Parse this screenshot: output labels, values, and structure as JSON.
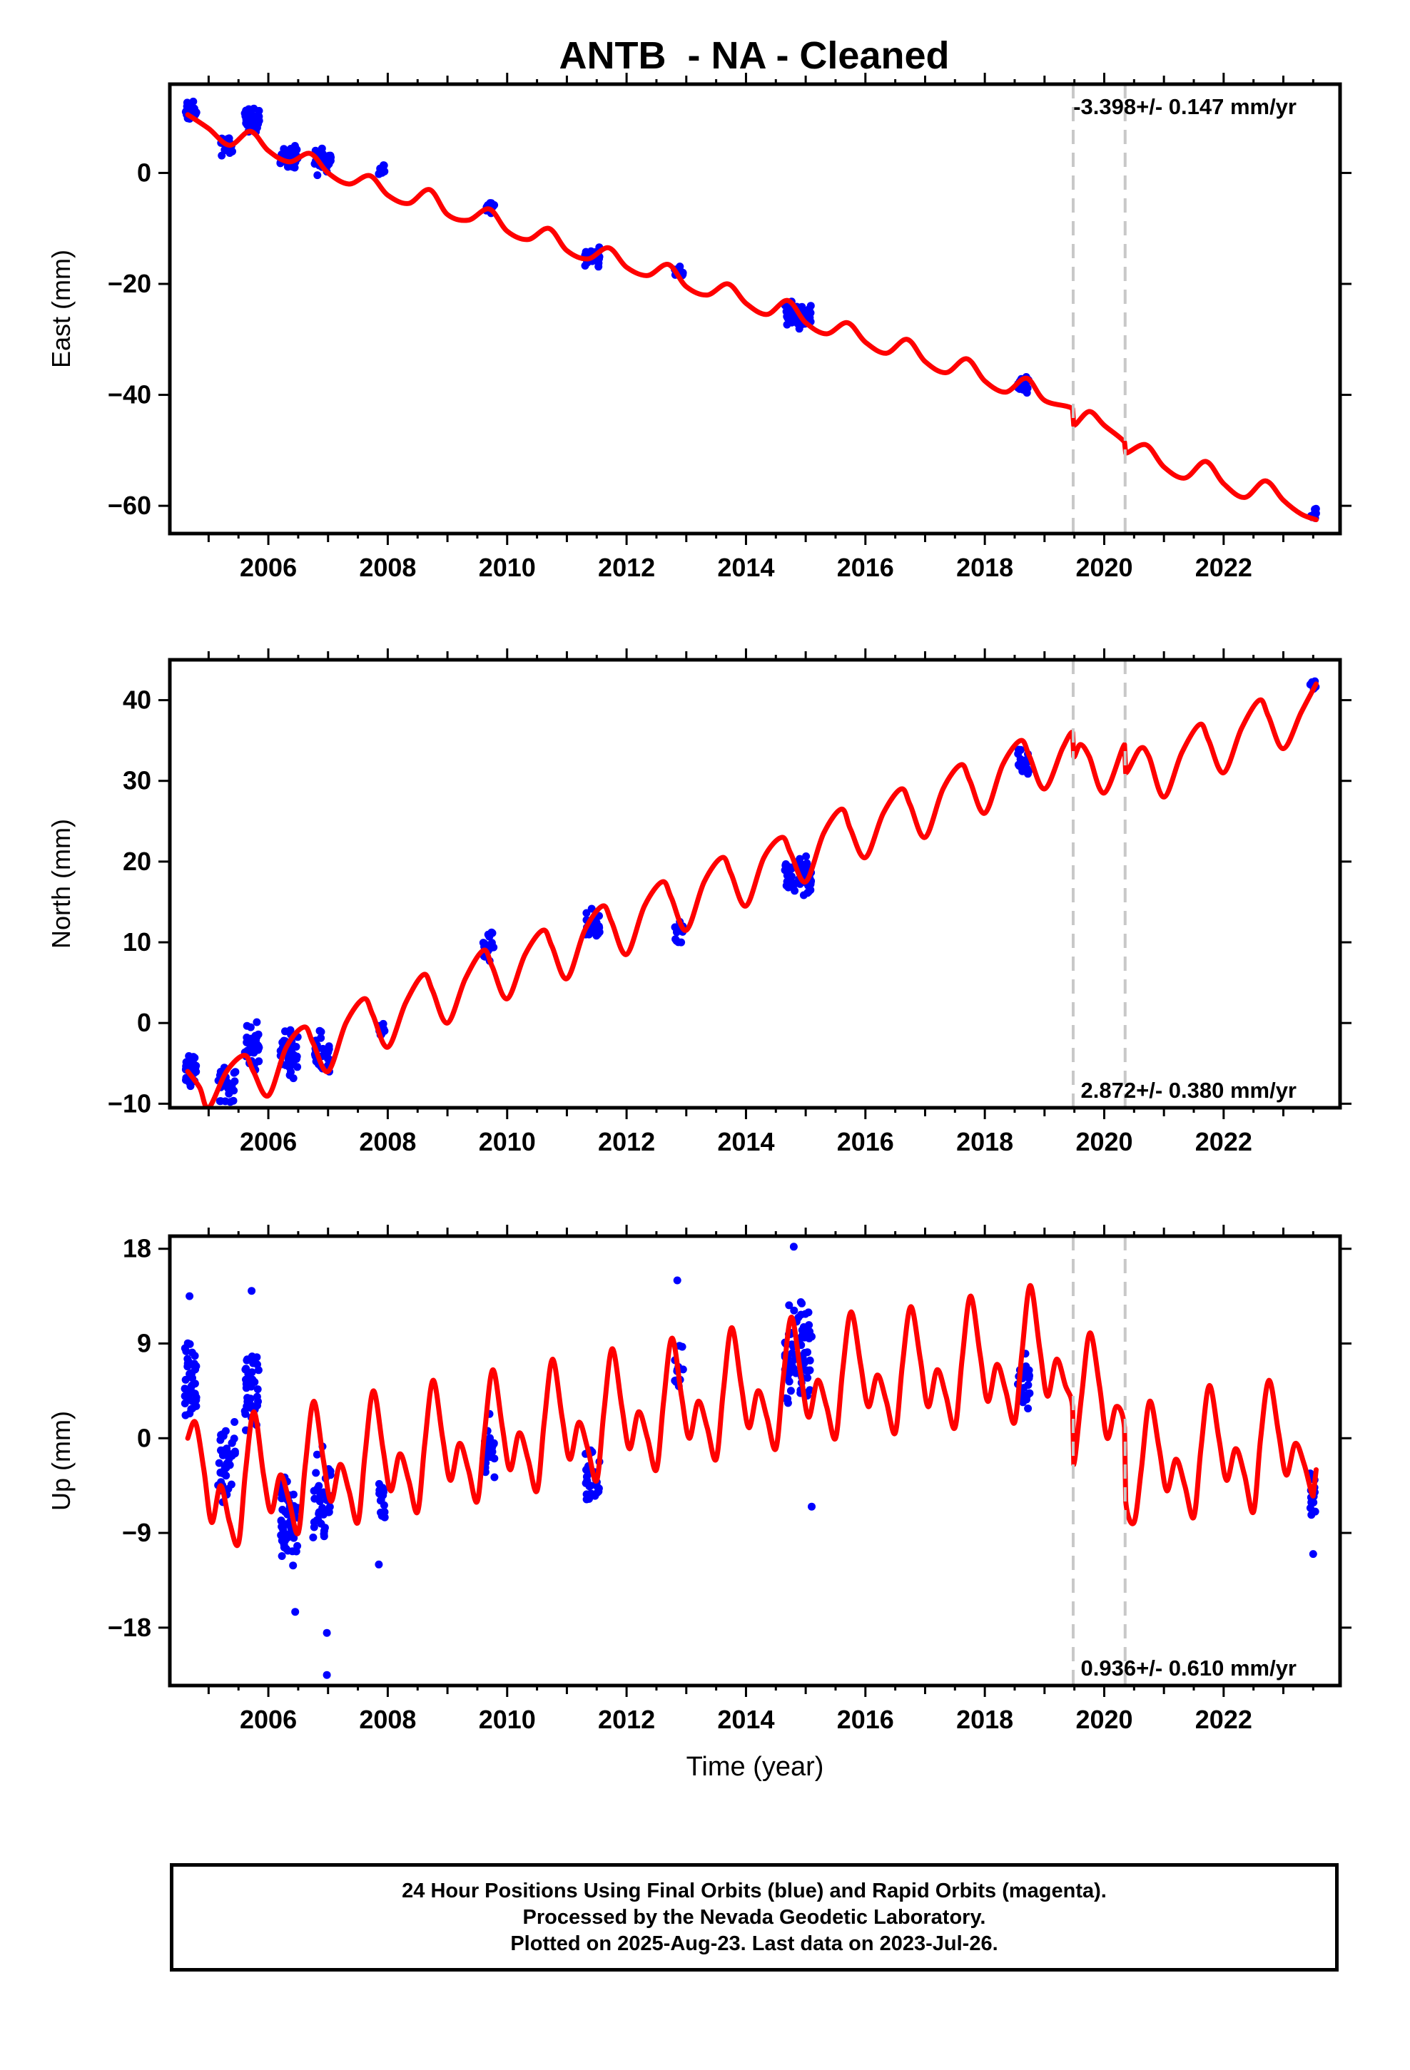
{
  "title": "ANTB  - NA - Cleaned",
  "colors": {
    "final_orbits": "#0000ff",
    "model": "#ff0000",
    "steps": "#c8c8c8",
    "frame": "#000000"
  },
  "chart_data": [
    {
      "type": "scatter",
      "component": "east",
      "ylabel": "East (mm)",
      "xlabel": "",
      "xlim": [
        2004.35,
        2023.95
      ],
      "ylim": [
        -65,
        16
      ],
      "yticks": [
        -60,
        -40,
        -20,
        0
      ],
      "xticks": [
        2006,
        2008,
        2010,
        2012,
        2014,
        2016,
        2018,
        2020,
        2022
      ],
      "rate_label": "-3.398+/- 0.147 mm/yr",
      "rate_position": "top-right",
      "steps": [
        2019.48,
        2020.35
      ],
      "model": {
        "name": "model",
        "x": [
          2004.65,
          2005.0,
          2005.35,
          2005.7,
          2006.0,
          2006.35,
          2006.7,
          2007.0,
          2007.35,
          2007.7,
          2008.0,
          2008.35,
          2008.7,
          2009.0,
          2009.35,
          2009.7,
          2010.0,
          2010.35,
          2010.7,
          2011.0,
          2011.35,
          2011.7,
          2012.0,
          2012.35,
          2012.7,
          2013.0,
          2013.35,
          2013.7,
          2014.0,
          2014.35,
          2014.7,
          2015.0,
          2015.35,
          2015.7,
          2016.0,
          2016.35,
          2016.7,
          2017.0,
          2017.35,
          2017.7,
          2018.0,
          2018.35,
          2018.7,
          2019.0,
          2019.47,
          2019.49,
          2019.75,
          2020.0,
          2020.34,
          2020.36,
          2020.7,
          2021.0,
          2021.35,
          2021.7,
          2022.0,
          2022.35,
          2022.7,
          2023.0,
          2023.3,
          2023.55
        ],
        "y": [
          10.5,
          8.0,
          5.0,
          7.5,
          4.0,
          2.0,
          3.5,
          0.0,
          -2.0,
          -0.5,
          -4.0,
          -5.5,
          -3.0,
          -7.5,
          -8.5,
          -6.5,
          -10.5,
          -12.0,
          -10.0,
          -14.0,
          -15.5,
          -13.5,
          -17.0,
          -18.5,
          -16.5,
          -20.5,
          -22.0,
          -20.0,
          -23.5,
          -25.5,
          -23.0,
          -27.0,
          -29.0,
          -27.0,
          -30.5,
          -32.5,
          -30.0,
          -34.0,
          -36.0,
          -33.5,
          -37.5,
          -39.5,
          -37.0,
          -41.0,
          -42.5,
          -45.5,
          -43.0,
          -45.5,
          -48.5,
          -50.5,
          -49.0,
          -53.0,
          -55.0,
          -52.0,
          -56.0,
          -58.5,
          -55.5,
          -59.0,
          -61.5,
          -62.5
        ]
      },
      "clusters": [
        {
          "x0": 2004.6,
          "x1": 2004.8,
          "y": 11.0,
          "spread": 2.5,
          "n": 30
        },
        {
          "x0": 2005.2,
          "x1": 2005.4,
          "y": 5.0,
          "spread": 2.5,
          "n": 30
        },
        {
          "x0": 2005.6,
          "x1": 2005.85,
          "y": 9.5,
          "spread": 3.0,
          "n": 34
        },
        {
          "x0": 2006.2,
          "x1": 2006.5,
          "y": 3.0,
          "spread": 3.0,
          "n": 40
        },
        {
          "x0": 2006.75,
          "x1": 2007.05,
          "y": 2.0,
          "spread": 3.0,
          "n": 36
        },
        {
          "x0": 2007.85,
          "x1": 2007.95,
          "y": 0.5,
          "spread": 2.0,
          "n": 12
        },
        {
          "x0": 2009.65,
          "x1": 2009.8,
          "y": -6.0,
          "spread": 1.5,
          "n": 16
        },
        {
          "x0": 2011.3,
          "x1": 2011.55,
          "y": -15.0,
          "spread": 2.5,
          "n": 30
        },
        {
          "x0": 2012.8,
          "x1": 2012.95,
          "y": -18.0,
          "spread": 2.0,
          "n": 12
        },
        {
          "x0": 2014.65,
          "x1": 2015.1,
          "y": -25.5,
          "spread": 3.0,
          "n": 60
        },
        {
          "x0": 2018.55,
          "x1": 2018.75,
          "y": -38.0,
          "spread": 2.0,
          "n": 20
        },
        {
          "x0": 2023.45,
          "x1": 2023.55,
          "y": -61.5,
          "spread": 1.5,
          "n": 12
        }
      ]
    },
    {
      "type": "scatter",
      "component": "north",
      "ylabel": "North (mm)",
      "xlabel": "",
      "xlim": [
        2004.35,
        2023.95
      ],
      "ylim": [
        -10.5,
        45
      ],
      "yticks": [
        -10,
        0,
        10,
        20,
        30,
        40
      ],
      "xticks": [
        2006,
        2008,
        2010,
        2012,
        2014,
        2016,
        2018,
        2020,
        2022
      ],
      "rate_label": "2.872+/- 0.380 mm/yr",
      "rate_position": "bottom-right",
      "steps": [
        2019.48,
        2020.35
      ],
      "model": {
        "name": "model",
        "x": [
          2004.65,
          2004.85,
          2005.0,
          2005.3,
          2005.6,
          2005.75,
          2006.0,
          2006.3,
          2006.6,
          2006.75,
          2007.0,
          2007.3,
          2007.6,
          2007.75,
          2008.0,
          2008.3,
          2008.6,
          2008.75,
          2009.0,
          2009.3,
          2009.6,
          2009.75,
          2010.0,
          2010.3,
          2010.6,
          2010.75,
          2011.0,
          2011.3,
          2011.6,
          2011.75,
          2012.0,
          2012.3,
          2012.6,
          2012.75,
          2013.0,
          2013.3,
          2013.6,
          2013.75,
          2014.0,
          2014.3,
          2014.6,
          2014.75,
          2015.0,
          2015.3,
          2015.6,
          2015.75,
          2016.0,
          2016.3,
          2016.6,
          2016.75,
          2017.0,
          2017.3,
          2017.6,
          2017.75,
          2018.0,
          2018.3,
          2018.6,
          2018.75,
          2019.0,
          2019.3,
          2019.47,
          2019.49,
          2019.6,
          2019.75,
          2020.0,
          2020.34,
          2020.36,
          2020.6,
          2020.75,
          2021.0,
          2021.3,
          2021.6,
          2021.75,
          2022.0,
          2022.3,
          2022.6,
          2022.75,
          2023.0,
          2023.3,
          2023.55
        ],
        "y": [
          -6.0,
          -8.0,
          -10.5,
          -6.0,
          -4.0,
          -6.0,
          -9.0,
          -3.0,
          -0.5,
          -2.5,
          -6.0,
          0.0,
          3.0,
          1.0,
          -3.0,
          2.5,
          6.0,
          4.0,
          0.0,
          5.5,
          9.0,
          7.0,
          3.0,
          8.5,
          11.5,
          9.5,
          5.5,
          11.5,
          14.5,
          12.5,
          8.5,
          14.5,
          17.5,
          15.5,
          11.5,
          17.5,
          20.5,
          18.5,
          14.5,
          20.5,
          23.0,
          21.0,
          17.5,
          23.5,
          26.5,
          24.0,
          20.5,
          26.0,
          29.0,
          27.0,
          23.0,
          29.0,
          32.0,
          30.0,
          26.0,
          32.0,
          35.0,
          33.0,
          29.0,
          34.0,
          36.0,
          33.0,
          34.5,
          33.0,
          28.5,
          34.5,
          31.0,
          34.0,
          33.0,
          28.0,
          33.5,
          37.0,
          35.0,
          31.0,
          36.5,
          40.0,
          38.0,
          34.0,
          38.5,
          42.0
        ]
      },
      "clusters": [
        {
          "x0": 2004.6,
          "x1": 2004.8,
          "y": -6.0,
          "spread": 3.0,
          "n": 30
        },
        {
          "x0": 2005.15,
          "x1": 2005.45,
          "y": -7.5,
          "spread": 3.0,
          "n": 34
        },
        {
          "x0": 2005.6,
          "x1": 2005.85,
          "y": -3.0,
          "spread": 4.0,
          "n": 36
        },
        {
          "x0": 2006.2,
          "x1": 2006.5,
          "y": -4.0,
          "spread": 4.0,
          "n": 40
        },
        {
          "x0": 2006.75,
          "x1": 2007.05,
          "y": -3.5,
          "spread": 3.5,
          "n": 36
        },
        {
          "x0": 2007.85,
          "x1": 2007.95,
          "y": -1.0,
          "spread": 1.5,
          "n": 12
        },
        {
          "x0": 2009.6,
          "x1": 2009.8,
          "y": 9.5,
          "spread": 2.5,
          "n": 20
        },
        {
          "x0": 2011.3,
          "x1": 2011.55,
          "y": 12.0,
          "spread": 2.5,
          "n": 30
        },
        {
          "x0": 2012.8,
          "x1": 2012.95,
          "y": 11.0,
          "spread": 2.5,
          "n": 12
        },
        {
          "x0": 2014.65,
          "x1": 2015.1,
          "y": 18.0,
          "spread": 3.5,
          "n": 60
        },
        {
          "x0": 2018.55,
          "x1": 2018.75,
          "y": 32.0,
          "spread": 2.5,
          "n": 20
        },
        {
          "x0": 2023.45,
          "x1": 2023.55,
          "y": 42.0,
          "spread": 1.5,
          "n": 12
        }
      ]
    },
    {
      "type": "scatter",
      "component": "up",
      "ylabel": "Up (mm)",
      "xlabel": "Time (year)",
      "xlim": [
        2004.35,
        2023.95
      ],
      "ylim": [
        -23.5,
        19.2
      ],
      "yticks": [
        -18,
        -9,
        0,
        9,
        18
      ],
      "xticks": [
        2006,
        2008,
        2010,
        2012,
        2014,
        2016,
        2018,
        2020,
        2022
      ],
      "rate_label": "0.936+/- 0.610 mm/yr",
      "rate_position": "bottom-right",
      "steps": [
        2019.48,
        2020.35
      ],
      "model": {
        "name": "model",
        "x": [
          2004.65,
          2004.78,
          2004.92,
          2005.05,
          2005.2,
          2005.35,
          2005.5,
          2005.62,
          2005.76,
          2005.92,
          2006.05,
          2006.2,
          2006.35,
          2006.5,
          2006.62,
          2006.76,
          2006.92,
          2007.05,
          2007.2,
          2007.35,
          2007.5,
          2007.62,
          2007.76,
          2007.92,
          2008.05,
          2008.2,
          2008.35,
          2008.5,
          2008.62,
          2008.76,
          2008.92,
          2009.05,
          2009.2,
          2009.35,
          2009.5,
          2009.62,
          2009.76,
          2009.92,
          2010.05,
          2010.2,
          2010.35,
          2010.5,
          2010.62,
          2010.76,
          2010.92,
          2011.05,
          2011.2,
          2011.35,
          2011.5,
          2011.62,
          2011.76,
          2011.92,
          2012.05,
          2012.2,
          2012.35,
          2012.5,
          2012.62,
          2012.76,
          2012.92,
          2013.05,
          2013.2,
          2013.35,
          2013.5,
          2013.62,
          2013.76,
          2013.92,
          2014.05,
          2014.2,
          2014.35,
          2014.5,
          2014.62,
          2014.76,
          2014.92,
          2015.05,
          2015.2,
          2015.35,
          2015.5,
          2015.62,
          2015.76,
          2015.92,
          2016.05,
          2016.2,
          2016.35,
          2016.5,
          2016.62,
          2016.76,
          2016.92,
          2017.05,
          2017.2,
          2017.35,
          2017.5,
          2017.62,
          2017.76,
          2017.92,
          2018.05,
          2018.2,
          2018.35,
          2018.5,
          2018.62,
          2018.76,
          2018.92,
          2019.05,
          2019.2,
          2019.35,
          2019.47,
          2019.49,
          2019.62,
          2019.76,
          2019.92,
          2020.05,
          2020.2,
          2020.34,
          2020.36,
          2020.5,
          2020.62,
          2020.76,
          2020.92,
          2021.05,
          2021.2,
          2021.35,
          2021.5,
          2021.62,
          2021.76,
          2021.92,
          2022.05,
          2022.2,
          2022.35,
          2022.5,
          2022.62,
          2022.76,
          2022.92,
          2023.05,
          2023.2,
          2023.35,
          2023.5,
          2023.55
        ],
        "y": [
          0.0,
          1.5,
          -3.0,
          -8.0,
          -4.5,
          -8.0,
          -10.0,
          -3.0,
          2.5,
          -3.5,
          -7.0,
          -3.5,
          -6.0,
          -9.0,
          -2.5,
          3.5,
          -2.0,
          -6.0,
          -2.5,
          -5.0,
          -8.0,
          -1.5,
          4.5,
          -1.0,
          -5.0,
          -1.5,
          -4.0,
          -7.0,
          -0.5,
          5.5,
          0.0,
          -4.0,
          -0.5,
          -3.0,
          -6.0,
          0.5,
          6.5,
          1.0,
          -3.0,
          0.5,
          -2.0,
          -5.0,
          1.5,
          7.5,
          2.0,
          -2.0,
          1.5,
          -1.0,
          -4.0,
          2.5,
          8.5,
          3.0,
          -1.0,
          2.5,
          0.0,
          -3.0,
          3.5,
          9.5,
          4.0,
          0.0,
          3.5,
          1.0,
          -2.0,
          4.5,
          10.5,
          5.0,
          1.0,
          4.5,
          2.0,
          -1.0,
          5.5,
          11.5,
          6.0,
          2.0,
          5.5,
          3.0,
          0.0,
          6.5,
          12.0,
          7.0,
          3.0,
          6.0,
          3.5,
          0.5,
          7.0,
          12.5,
          7.5,
          3.0,
          6.5,
          4.0,
          1.0,
          7.5,
          13.5,
          8.0,
          3.5,
          7.0,
          4.5,
          1.5,
          8.0,
          14.5,
          8.5,
          4.0,
          7.5,
          5.0,
          3.0,
          -2.5,
          4.0,
          10.0,
          5.0,
          0.0,
          3.0,
          1.0,
          -6.0,
          -8.0,
          -3.0,
          3.5,
          -1.0,
          -5.0,
          -2.0,
          -4.5,
          -7.5,
          -1.0,
          5.0,
          0.0,
          -4.0,
          -1.0,
          -3.5,
          -7.0,
          0.0,
          5.5,
          0.5,
          -3.5,
          -0.5,
          -2.5,
          -5.5,
          -3.0
        ]
      },
      "clusters": [
        {
          "x0": 2004.6,
          "x1": 2004.8,
          "y": 5.0,
          "spread": 6.0,
          "n": 40
        },
        {
          "x0": 2005.15,
          "x1": 2005.45,
          "y": -2.5,
          "spread": 6.0,
          "n": 40
        },
        {
          "x0": 2005.6,
          "x1": 2005.85,
          "y": 4.5,
          "spread": 6.0,
          "n": 40
        },
        {
          "x0": 2006.2,
          "x1": 2006.5,
          "y": -8.0,
          "spread": 6.0,
          "n": 54
        },
        {
          "x0": 2006.75,
          "x1": 2007.05,
          "y": -6.0,
          "spread": 6.0,
          "n": 40
        },
        {
          "x0": 2007.85,
          "x1": 2007.95,
          "y": -6.0,
          "spread": 4.5,
          "n": 16
        },
        {
          "x0": 2009.6,
          "x1": 2009.8,
          "y": -1.5,
          "spread": 4.5,
          "n": 24
        },
        {
          "x0": 2011.3,
          "x1": 2011.55,
          "y": -3.5,
          "spread": 4.5,
          "n": 30
        },
        {
          "x0": 2012.8,
          "x1": 2012.95,
          "y": 7.0,
          "spread": 4.0,
          "n": 12
        },
        {
          "x0": 2014.65,
          "x1": 2015.1,
          "y": 8.0,
          "spread": 6.5,
          "n": 80
        },
        {
          "x0": 2018.55,
          "x1": 2018.75,
          "y": 6.0,
          "spread": 5.0,
          "n": 24
        },
        {
          "x0": 2023.45,
          "x1": 2023.55,
          "y": -5.0,
          "spread": 4.0,
          "n": 14
        }
      ],
      "outliers": [
        {
          "x": 2004.68,
          "y": 13.5
        },
        {
          "x": 2005.72,
          "y": 14.0
        },
        {
          "x": 2006.45,
          "y": -16.5
        },
        {
          "x": 2006.98,
          "y": -18.5
        },
        {
          "x": 2006.98,
          "y": -22.5
        },
        {
          "x": 2007.85,
          "y": -12.0
        },
        {
          "x": 2012.85,
          "y": 15.0
        },
        {
          "x": 2014.8,
          "y": 18.2
        },
        {
          "x": 2015.1,
          "y": -6.5
        },
        {
          "x": 2023.5,
          "y": -11.0
        }
      ]
    }
  ],
  "footer": {
    "line1": "24 Hour Positions Using Final Orbits (blue) and Rapid Orbits (magenta).",
    "line2": "Processed by the Nevada Geodetic Laboratory.",
    "line3": "Plotted on 2025-Aug-23. Last data on 2023-Jul-26."
  }
}
